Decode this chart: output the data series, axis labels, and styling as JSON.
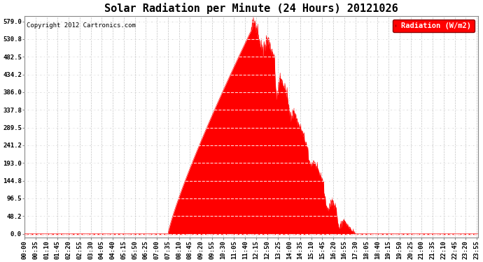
{
  "title": "Solar Radiation per Minute (24 Hours) 20121026",
  "copyright": "Copyright 2012 Cartronics.com",
  "legend_label": "Radiation (W/m2)",
  "bg_color": "#ffffff",
  "plot_bg_color": "#ffffff",
  "fill_color": "#ff0000",
  "line_color": "#ff0000",
  "dashed_zero_color": "#ff0000",
  "grid_color": "#aaaaaa",
  "yticks": [
    0.0,
    48.2,
    96.5,
    144.8,
    193.0,
    241.2,
    289.5,
    337.8,
    386.0,
    434.2,
    482.5,
    530.8,
    579.0
  ],
  "ymax": 579.0,
  "ymin": 0.0,
  "n_minutes": 1440,
  "x_tick_step": 35,
  "title_fontsize": 11,
  "axis_fontsize": 6.5,
  "legend_fontsize": 7.5
}
